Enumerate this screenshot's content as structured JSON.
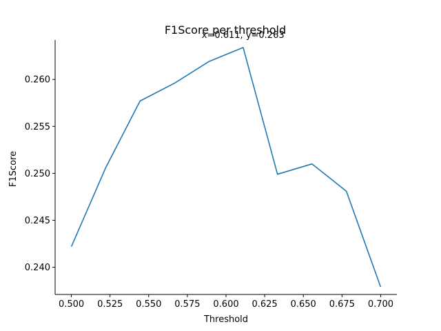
{
  "chart_data": {
    "type": "line",
    "title": "F1Score per threshold",
    "xlabel": "Threshold",
    "ylabel": "F1Score",
    "annotation": "x=0.611, y=0.263",
    "annotation_point": {
      "x": 0.611,
      "y": 0.2634
    },
    "xlim": [
      0.4895,
      0.7105
    ],
    "ylim": [
      0.2371,
      0.2642
    ],
    "x_ticks": [
      0.5,
      0.525,
      0.55,
      0.575,
      0.6,
      0.625,
      0.65,
      0.675,
      0.7
    ],
    "x_tick_labels": [
      "0.500",
      "0.525",
      "0.550",
      "0.575",
      "0.600",
      "0.625",
      "0.650",
      "0.675",
      "0.700"
    ],
    "y_ticks": [
      0.24,
      0.245,
      0.25,
      0.255,
      0.26
    ],
    "y_tick_labels": [
      "0.240",
      "0.245",
      "0.250",
      "0.255",
      "0.260"
    ],
    "grid": false,
    "line_color": "#1f77b4",
    "series": [
      {
        "x": [
          0.5,
          0.5222,
          0.5444,
          0.5667,
          0.5889,
          0.6111,
          0.6333,
          0.6556,
          0.6778,
          0.7
        ],
        "values": [
          0.2422,
          0.2506,
          0.2577,
          0.2596,
          0.2619,
          0.2634,
          0.2499,
          0.251,
          0.2481,
          0.2379
        ]
      }
    ]
  }
}
